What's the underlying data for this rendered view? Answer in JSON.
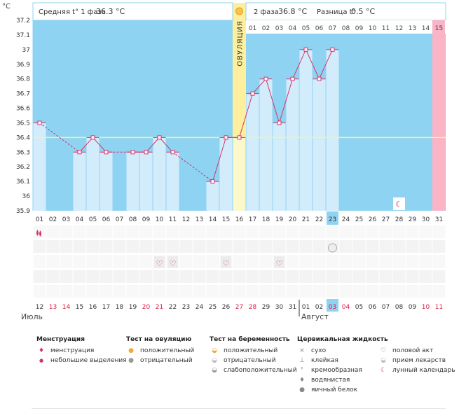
{
  "header": {
    "unit": "°C",
    "phase1_label": "Средняя t° 1 фаза",
    "phase1_value": "36.3 °C",
    "phase2_label": "2 фаза",
    "phase2_value": "36.8 °C",
    "diff_label": "Разница t°",
    "diff_value": "0.5 °C",
    "ovulation_label": "ОВУЛЯЦИЯ"
  },
  "chart_data": {
    "type": "line",
    "ylim": [
      35.9,
      37.2
    ],
    "yticks": [
      "35.9",
      "36",
      "36.1",
      "36.2",
      "36.3",
      "36.4",
      "36.5",
      "36.6",
      "36.7",
      "36.8",
      "36.9",
      "37",
      "37.1",
      "37.2"
    ],
    "cycle_days": [
      "01",
      "02",
      "03",
      "04",
      "05",
      "06",
      "07",
      "08",
      "09",
      "10",
      "11",
      "12",
      "13",
      "14",
      "15",
      "16",
      "17",
      "18",
      "19",
      "20",
      "21",
      "22",
      "23",
      "24",
      "25",
      "26",
      "27",
      "28",
      "29",
      "30",
      "31"
    ],
    "phase2_days": [
      "01",
      "02",
      "03",
      "04",
      "05",
      "06",
      "07",
      "08",
      "09",
      "10",
      "11",
      "12",
      "13",
      "14",
      "15"
    ],
    "calendar_dates": [
      "12",
      "13",
      "14",
      "15",
      "16",
      "17",
      "18",
      "19",
      "20",
      "21",
      "22",
      "23",
      "24",
      "25",
      "26",
      "27",
      "28",
      "29",
      "30",
      "31",
      "01",
      "02",
      "03",
      "04",
      "05",
      "06",
      "07",
      "08",
      "09",
      "10",
      "11"
    ],
    "weekend_dates": [
      1,
      2,
      8,
      9,
      15,
      16,
      22,
      23,
      29,
      30
    ],
    "temperature": [
      36.5,
      null,
      null,
      36.3,
      36.4,
      36.3,
      null,
      36.3,
      36.3,
      36.4,
      36.3,
      null,
      null,
      36.1,
      36.4,
      36.4,
      36.7,
      36.8,
      36.5,
      36.8,
      37.0,
      36.8,
      37.0,
      null,
      null,
      null,
      null,
      null,
      null,
      null,
      null
    ],
    "coverline": 36.4,
    "ovulation_day": 16,
    "today_day": 23,
    "predicted_period_day": 31,
    "moon_day": 28,
    "menstruation_days": [
      1
    ],
    "intercourse_days": [
      10,
      11,
      15,
      19
    ],
    "pregnancy_test_weak_days": [
      23
    ],
    "months": [
      "Июль",
      "Август"
    ],
    "colors": {
      "background": "#8fd3f2",
      "bar": "#d3ecfc",
      "ovulation": "#fdef9e",
      "ovulation_bar": "#fdf7cc",
      "period": "#fbb3c6",
      "line": "#d6336c",
      "coverline": "#f6f29a",
      "weekend": "#d61c45",
      "today": "#8fd3f2"
    }
  },
  "legend": {
    "menstruation": {
      "title": "Менструация",
      "items": [
        "менструация",
        "небольшие выделения"
      ]
    },
    "ovulation_test": {
      "title": "Тест на овуляцию",
      "items": [
        "положительный",
        "отрицательный"
      ]
    },
    "pregnancy_test": {
      "title": "Тест на беременность",
      "items": [
        "положительный",
        "отрицательный",
        "слабоположительный"
      ]
    },
    "cervical": {
      "title": "Цервикальная жидкость",
      "items": [
        "сухо",
        "клейкая",
        "кремообразная",
        "водянистая",
        "яичный белок"
      ]
    },
    "other": {
      "items": [
        "половой акт",
        "прием лекарств",
        "лунный календарь"
      ]
    }
  }
}
